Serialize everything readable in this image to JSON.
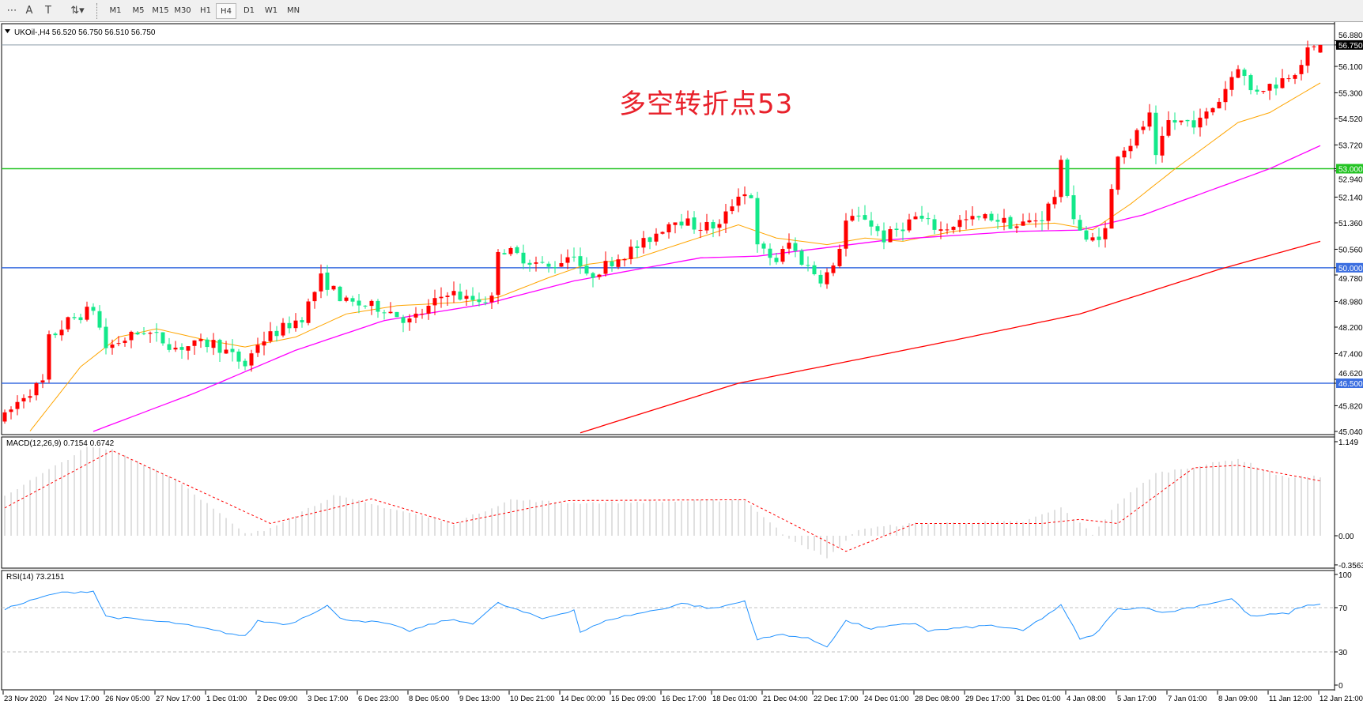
{
  "toolbar": {
    "tools": [
      {
        "name": "grid-lines-icon",
        "glyph": "⋯"
      },
      {
        "name": "text-tool-icon",
        "glyph": "A"
      },
      {
        "name": "text-label-icon",
        "glyph": "T"
      },
      {
        "name": "arrows-dropdown-icon",
        "glyph": "⇅▾"
      }
    ],
    "timeframes": [
      "M1",
      "M5",
      "M15",
      "M30",
      "H1",
      "H4",
      "D1",
      "W1",
      "MN"
    ],
    "active_timeframe": "H4"
  },
  "chart": {
    "header": "UKOil-,H4  56.520 56.750 56.510 56.750",
    "annotation": "多空转折点53",
    "current_price": "56.750",
    "colors": {
      "bull": "#ff0000",
      "bear": "#13e88a",
      "ma_fast": "#ffa500",
      "ma_mid": "#ff00ff",
      "ma_slow": "#ff0000",
      "line_53": "#22c322",
      "line_blue": "#3b6ee0",
      "macd_hist": "#c0c0c0",
      "macd_signal": "#ff0000",
      "rsi": "#1e90ff"
    },
    "levels": [
      {
        "label": "53.000",
        "value": 53.0,
        "color": "#22c322"
      },
      {
        "label": "50.000",
        "value": 50.0,
        "color": "#3b6ee0"
      },
      {
        "label": "46.500",
        "value": 46.5,
        "color": "#3b6ee0"
      }
    ],
    "price_ticks": [
      "56.880",
      "56.100",
      "55.300",
      "54.520",
      "53.720",
      "52.940",
      "52.140",
      "51.360",
      "50.560",
      "49.780",
      "48.980",
      "48.200",
      "47.400",
      "46.620",
      "45.820",
      "45.040"
    ],
    "time_labels": [
      "23 Nov 2020",
      "24 Nov 17:00",
      "26 Nov 05:00",
      "27 Nov 17:00",
      "1 Dec 01:00",
      "2 Dec 09:00",
      "3 Dec 17:00",
      "6 Dec 23:00",
      "8 Dec 05:00",
      "9 Dec 13:00",
      "10 Dec 21:00",
      "14 Dec 00:00",
      "15 Dec 09:00",
      "16 Dec 17:00",
      "18 Dec 01:00",
      "21 Dec 04:00",
      "22 Dec 17:00",
      "24 Dec 01:00",
      "28 Dec 08:00",
      "29 Dec 17:00",
      "31 Dec 01:00",
      "4 Jan 08:00",
      "5 Jan 17:00",
      "7 Jan 01:00",
      "8 Jan 09:00",
      "11 Jan 12:00",
      "12 Jan 21:00"
    ],
    "last_bar": {
      "open": 56.52,
      "high": 56.75,
      "low": 56.51,
      "close": 56.75
    }
  },
  "chart_data": {
    "type": "candlestick",
    "bars": 209,
    "ylim": [
      45.04,
      56.88
    ],
    "close_keypoints": [
      [
        0,
        45.47
      ],
      [
        3,
        46.14
      ],
      [
        6,
        46.52
      ],
      [
        7,
        47.84
      ],
      [
        10,
        48.37
      ],
      [
        14,
        48.77
      ],
      [
        16,
        47.58
      ],
      [
        22,
        48.1
      ],
      [
        27,
        47.58
      ],
      [
        33,
        47.72
      ],
      [
        38,
        47.05
      ],
      [
        40,
        47.72
      ],
      [
        47,
        48.51
      ],
      [
        50,
        49.68
      ],
      [
        54,
        48.94
      ],
      [
        60,
        48.77
      ],
      [
        64,
        48.37
      ],
      [
        67,
        48.77
      ],
      [
        70,
        49.3
      ],
      [
        73,
        49.04
      ],
      [
        77,
        49.04
      ],
      [
        78,
        50.61
      ],
      [
        82,
        50.3
      ],
      [
        86,
        49.99
      ],
      [
        90,
        50.47
      ],
      [
        92,
        49.68
      ],
      [
        96,
        50.21
      ],
      [
        101,
        50.74
      ],
      [
        106,
        51.53
      ],
      [
        109,
        51.26
      ],
      [
        113,
        51.26
      ],
      [
        116,
        52.27
      ],
      [
        118,
        52.2
      ],
      [
        119,
        50.6
      ],
      [
        122,
        50.21
      ],
      [
        124,
        50.74
      ],
      [
        126,
        50.21
      ],
      [
        129,
        49.68
      ],
      [
        131,
        49.95
      ],
      [
        133,
        51.4
      ],
      [
        136,
        51.53
      ],
      [
        139,
        50.88
      ],
      [
        144,
        51.53
      ],
      [
        148,
        51.14
      ],
      [
        151,
        51.4
      ],
      [
        156,
        51.53
      ],
      [
        160,
        51.26
      ],
      [
        164,
        51.53
      ],
      [
        166,
        52.2
      ],
      [
        167,
        53.1
      ],
      [
        169,
        51.53
      ],
      [
        171,
        50.74
      ],
      [
        174,
        51.14
      ],
      [
        176,
        53.51
      ],
      [
        178,
        53.78
      ],
      [
        181,
        54.57
      ],
      [
        182,
        53.25
      ],
      [
        184,
        54.42
      ],
      [
        189,
        54.42
      ],
      [
        192,
        55.09
      ],
      [
        195,
        56.15
      ],
      [
        197,
        55.36
      ],
      [
        201,
        55.57
      ],
      [
        204,
        56.0
      ],
      [
        206,
        56.53
      ],
      [
        208,
        56.75
      ]
    ],
    "ma_fast": [
      [
        4,
        45.05
      ],
      [
        12,
        47.0
      ],
      [
        18,
        47.9
      ],
      [
        24,
        48.15
      ],
      [
        32,
        47.8
      ],
      [
        38,
        47.6
      ],
      [
        46,
        47.9
      ],
      [
        54,
        48.6
      ],
      [
        62,
        48.85
      ],
      [
        72,
        48.95
      ],
      [
        78,
        49.1
      ],
      [
        86,
        49.7
      ],
      [
        92,
        50.1
      ],
      [
        100,
        50.3
      ],
      [
        108,
        50.8
      ],
      [
        116,
        51.3
      ],
      [
        122,
        50.9
      ],
      [
        130,
        50.7
      ],
      [
        136,
        50.9
      ],
      [
        142,
        50.8
      ],
      [
        150,
        51.1
      ],
      [
        160,
        51.3
      ],
      [
        166,
        51.35
      ],
      [
        172,
        51.15
      ],
      [
        178,
        51.93
      ],
      [
        185,
        52.99
      ],
      [
        195,
        54.4
      ],
      [
        200,
        54.7
      ],
      [
        208,
        55.6
      ]
    ],
    "ma_mid": [
      [
        14,
        45.04
      ],
      [
        30,
        46.2
      ],
      [
        46,
        47.5
      ],
      [
        60,
        48.4
      ],
      [
        76,
        48.9
      ],
      [
        90,
        49.6
      ],
      [
        110,
        50.3
      ],
      [
        119,
        50.35
      ],
      [
        140,
        50.85
      ],
      [
        160,
        51.1
      ],
      [
        170,
        51.14
      ],
      [
        180,
        51.6
      ],
      [
        190,
        52.3
      ],
      [
        200,
        53.0
      ],
      [
        208,
        53.7
      ]
    ],
    "ma_slow": [
      [
        91,
        45.0
      ],
      [
        116,
        46.5
      ],
      [
        150,
        47.8
      ],
      [
        170,
        48.6
      ],
      [
        192,
        49.95
      ],
      [
        208,
        50.8
      ]
    ],
    "macd": {
      "label": "MACD(12,26,9) 0.7154 0.6742",
      "ylim": [
        -0.3563,
        1.149
      ],
      "ticks": [
        "1.149",
        "0.00",
        "-0.3563"
      ],
      "hist_keypoints": [
        [
          0,
          0.49
        ],
        [
          8,
          0.85
        ],
        [
          13,
          1.08
        ],
        [
          17,
          1.05
        ],
        [
          27,
          0.7
        ],
        [
          38,
          0.02
        ],
        [
          41,
          0.06
        ],
        [
          52,
          0.49
        ],
        [
          64,
          0.28
        ],
        [
          71,
          0.15
        ],
        [
          80,
          0.44
        ],
        [
          90,
          0.4
        ],
        [
          106,
          0.42
        ],
        [
          117,
          0.44
        ],
        [
          123,
          0.02
        ],
        [
          130,
          -0.28
        ],
        [
          135,
          0.08
        ],
        [
          144,
          0.15
        ],
        [
          161,
          0.17
        ],
        [
          167,
          0.34
        ],
        [
          172,
          0.02
        ],
        [
          176,
          0.4
        ],
        [
          182,
          0.76
        ],
        [
          195,
          0.94
        ],
        [
          202,
          0.72
        ],
        [
          208,
          0.72
        ]
      ],
      "signal_keypoints": [
        [
          0,
          0.34
        ],
        [
          17,
          1.04
        ],
        [
          42,
          0.15
        ],
        [
          58,
          0.45
        ],
        [
          71,
          0.15
        ],
        [
          89,
          0.43
        ],
        [
          117,
          0.44
        ],
        [
          133,
          -0.19
        ],
        [
          144,
          0.15
        ],
        [
          164,
          0.15
        ],
        [
          170,
          0.2
        ],
        [
          176,
          0.15
        ],
        [
          182,
          0.49
        ],
        [
          188,
          0.83
        ],
        [
          195,
          0.86
        ],
        [
          208,
          0.67
        ]
      ]
    },
    "rsi": {
      "label": "RSI(14) 73.2151",
      "ylim": [
        0,
        100
      ],
      "ticks": [
        "100",
        "70",
        "30",
        "0"
      ],
      "levels": [
        70,
        30
      ],
      "keypoints": [
        [
          0,
          69
        ],
        [
          8,
          83
        ],
        [
          14,
          85
        ],
        [
          16,
          62
        ],
        [
          27,
          56
        ],
        [
          38,
          44
        ],
        [
          40,
          58
        ],
        [
          45,
          55
        ],
        [
          51,
          72
        ],
        [
          53,
          60
        ],
        [
          60,
          56
        ],
        [
          64,
          49
        ],
        [
          70,
          59
        ],
        [
          74,
          56
        ],
        [
          78,
          74
        ],
        [
          82,
          66
        ],
        [
          85,
          60
        ],
        [
          90,
          68
        ],
        [
          91,
          48
        ],
        [
          96,
          60
        ],
        [
          104,
          69
        ],
        [
          107,
          74
        ],
        [
          112,
          69
        ],
        [
          117,
          76
        ],
        [
          119,
          41
        ],
        [
          123,
          46
        ],
        [
          127,
          42
        ],
        [
          130,
          35
        ],
        [
          133,
          58
        ],
        [
          137,
          51
        ],
        [
          144,
          56
        ],
        [
          146,
          49
        ],
        [
          156,
          54
        ],
        [
          161,
          49
        ],
        [
          167,
          72
        ],
        [
          170,
          42
        ],
        [
          172,
          44
        ],
        [
          176,
          69
        ],
        [
          181,
          70
        ],
        [
          183,
          65
        ],
        [
          194,
          78
        ],
        [
          197,
          62
        ],
        [
          203,
          65
        ],
        [
          205,
          71
        ],
        [
          208,
          73.2
        ]
      ]
    }
  }
}
